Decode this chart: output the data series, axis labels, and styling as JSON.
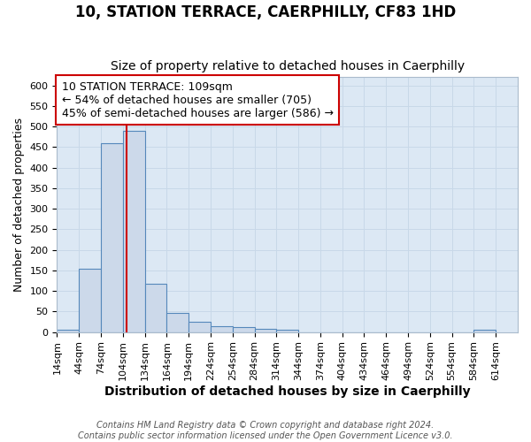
{
  "title": "10, STATION TERRACE, CAERPHILLY, CF83 1HD",
  "subtitle": "Size of property relative to detached houses in Caerphilly",
  "xlabel": "Distribution of detached houses by size in Caerphilly",
  "ylabel": "Number of detached properties",
  "footer_line1": "Contains HM Land Registry data © Crown copyright and database right 2024.",
  "footer_line2": "Contains public sector information licensed under the Open Government Licence v3.0.",
  "bin_edges": [
    14,
    44,
    74,
    104,
    134,
    164,
    194,
    224,
    254,
    284,
    314,
    344,
    374,
    404,
    434,
    464,
    494,
    524,
    554,
    584,
    614
  ],
  "bin_counts": [
    5,
    153,
    459,
    490,
    117,
    47,
    24,
    14,
    11,
    8,
    5,
    0,
    0,
    0,
    0,
    0,
    0,
    0,
    0,
    5
  ],
  "bar_facecolor": "#ccd9ea",
  "bar_edgecolor": "#5588bb",
  "vline_x": 109,
  "vline_color": "#cc0000",
  "annotation_text": "10 STATION TERRACE: 109sqm\n← 54% of detached houses are smaller (705)\n45% of semi-detached houses are larger (586) →",
  "annotation_box_edgecolor": "#cc0000",
  "annotation_box_facecolor": "#ffffff",
  "ylim": [
    0,
    620
  ],
  "yticks": [
    0,
    50,
    100,
    150,
    200,
    250,
    300,
    350,
    400,
    450,
    500,
    550,
    600
  ],
  "grid_color": "#c8d8e8",
  "plot_bg_color": "#dce8f4",
  "fig_bg_color": "#ffffff",
  "title_fontsize": 12,
  "subtitle_fontsize": 10,
  "xlabel_fontsize": 10,
  "ylabel_fontsize": 9,
  "tick_fontsize": 8,
  "annotation_fontsize": 9,
  "footer_fontsize": 7
}
